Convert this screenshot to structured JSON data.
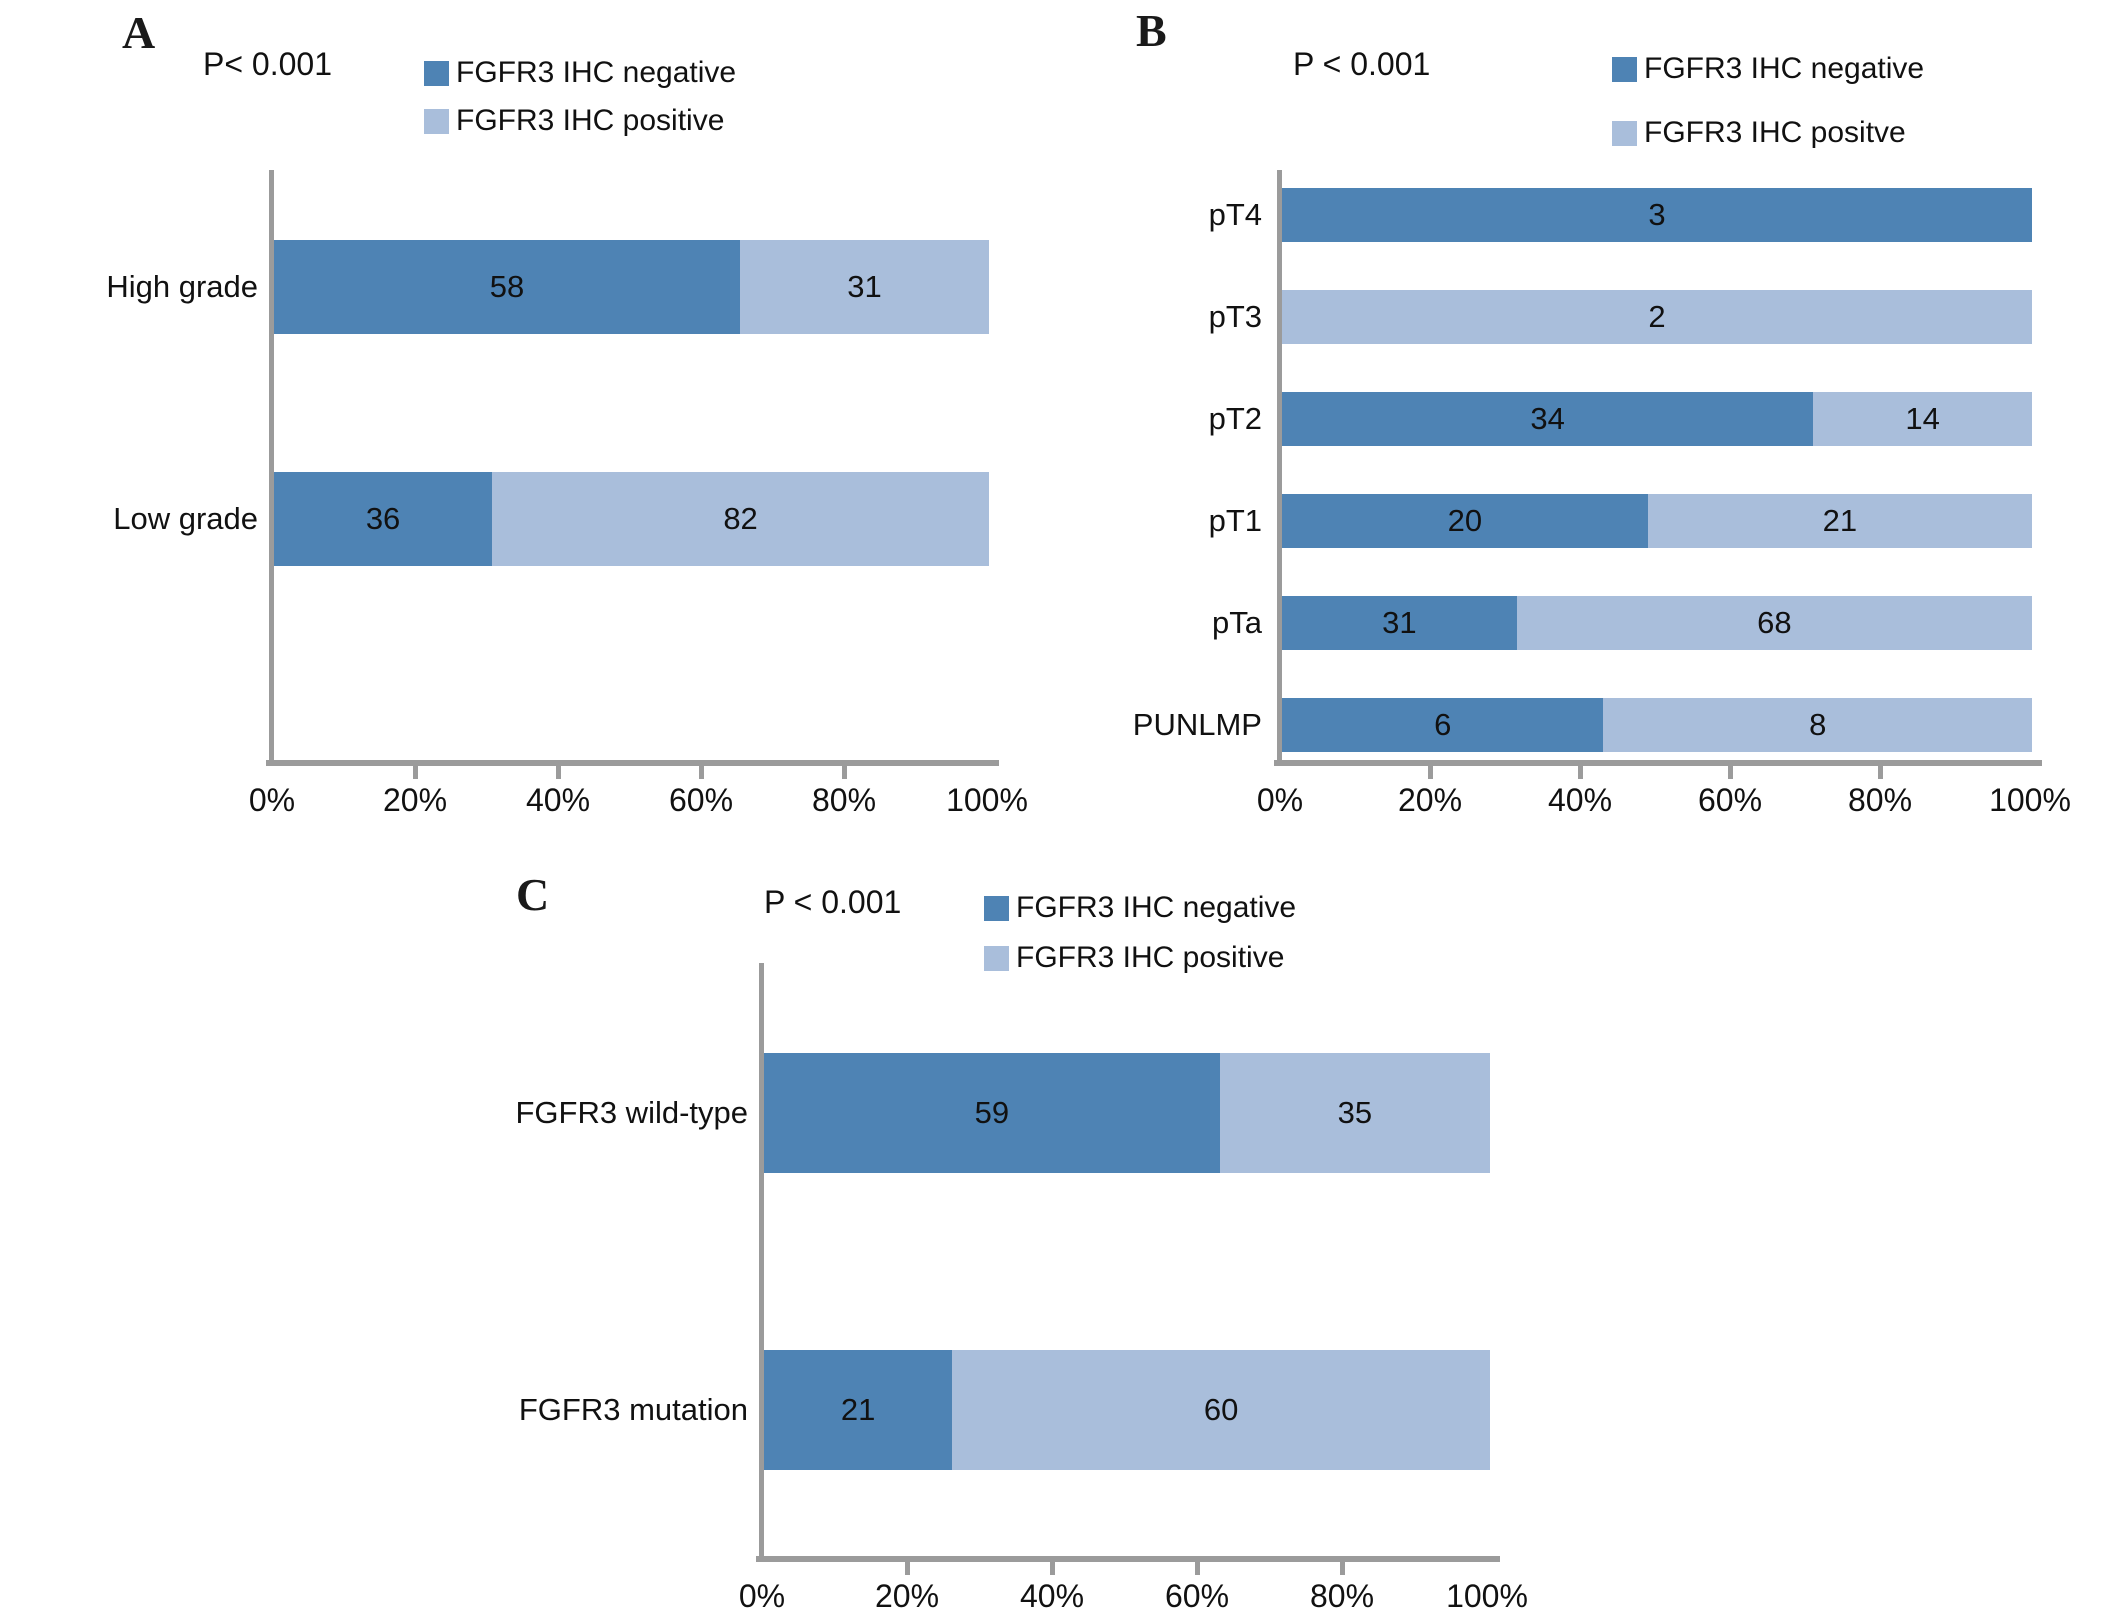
{
  "colors": {
    "negative": "#4e83b4",
    "positive": "#a9bedb",
    "axis": "#9b9b9b",
    "text": "#111111"
  },
  "chart_data": [
    {
      "type": "bar",
      "panel_letter": "A",
      "orientation": "horizontal",
      "stacked": true,
      "normalized": "percent-of-row-total",
      "p_value": "P< 0.001",
      "legend": [
        "FGFR3 IHC negative",
        "FGFR3 IHC positive"
      ],
      "categories": [
        "High grade",
        "Low grade"
      ],
      "series": [
        {
          "name": "FGFR3 IHC negative",
          "color": "#4e83b4",
          "values": [
            58,
            36
          ]
        },
        {
          "name": "FGFR3 IHC positive",
          "color": "#a9bedb",
          "values": [
            31,
            82
          ]
        }
      ],
      "x_tick_labels": [
        "0%",
        "20%",
        "40%",
        "60%",
        "80%",
        "100%"
      ],
      "xlim": [
        0,
        100
      ],
      "value_labels": "inside-center",
      "legend_position": "top-right",
      "grid": false
    },
    {
      "type": "bar",
      "panel_letter": "B",
      "orientation": "horizontal",
      "stacked": true,
      "normalized": "percent-of-row-total",
      "p_value": "P < 0.001",
      "legend": [
        "FGFR3 IHC negative",
        "FGFR3 IHC positve"
      ],
      "categories": [
        "pT4",
        "pT3",
        "pT2",
        "pT1",
        "pTa",
        "PUNLMP"
      ],
      "series": [
        {
          "name": "FGFR3 IHC negative",
          "color": "#4e83b4",
          "values": [
            3,
            0,
            34,
            20,
            31,
            6
          ]
        },
        {
          "name": "FGFR3 IHC positive",
          "color": "#a9bedb",
          "values": [
            0,
            2,
            14,
            21,
            68,
            8
          ]
        }
      ],
      "x_tick_labels": [
        "0%",
        "20%",
        "40%",
        "60%",
        "80%",
        "100%"
      ],
      "xlim": [
        0,
        100
      ],
      "value_labels": "inside-center",
      "legend_position": "top-right",
      "grid": false
    },
    {
      "type": "bar",
      "panel_letter": "C",
      "orientation": "horizontal",
      "stacked": true,
      "normalized": "percent-of-row-total",
      "p_value": "P < 0.001",
      "legend": [
        "FGFR3 IHC negative",
        "FGFR3 IHC positive"
      ],
      "categories": [
        "FGFR3 wild-type",
        "FGFR3 mutation"
      ],
      "series": [
        {
          "name": "FGFR3 IHC negative",
          "color": "#4e83b4",
          "values": [
            59,
            21
          ]
        },
        {
          "name": "FGFR3 IHC positive",
          "color": "#a9bedb",
          "values": [
            35,
            60
          ]
        }
      ],
      "x_tick_labels": [
        "0%",
        "20%",
        "40%",
        "60%",
        "80%",
        "100%"
      ],
      "xlim": [
        0,
        100
      ],
      "value_labels": "inside-center",
      "legend_position": "top-right",
      "grid": false
    }
  ]
}
